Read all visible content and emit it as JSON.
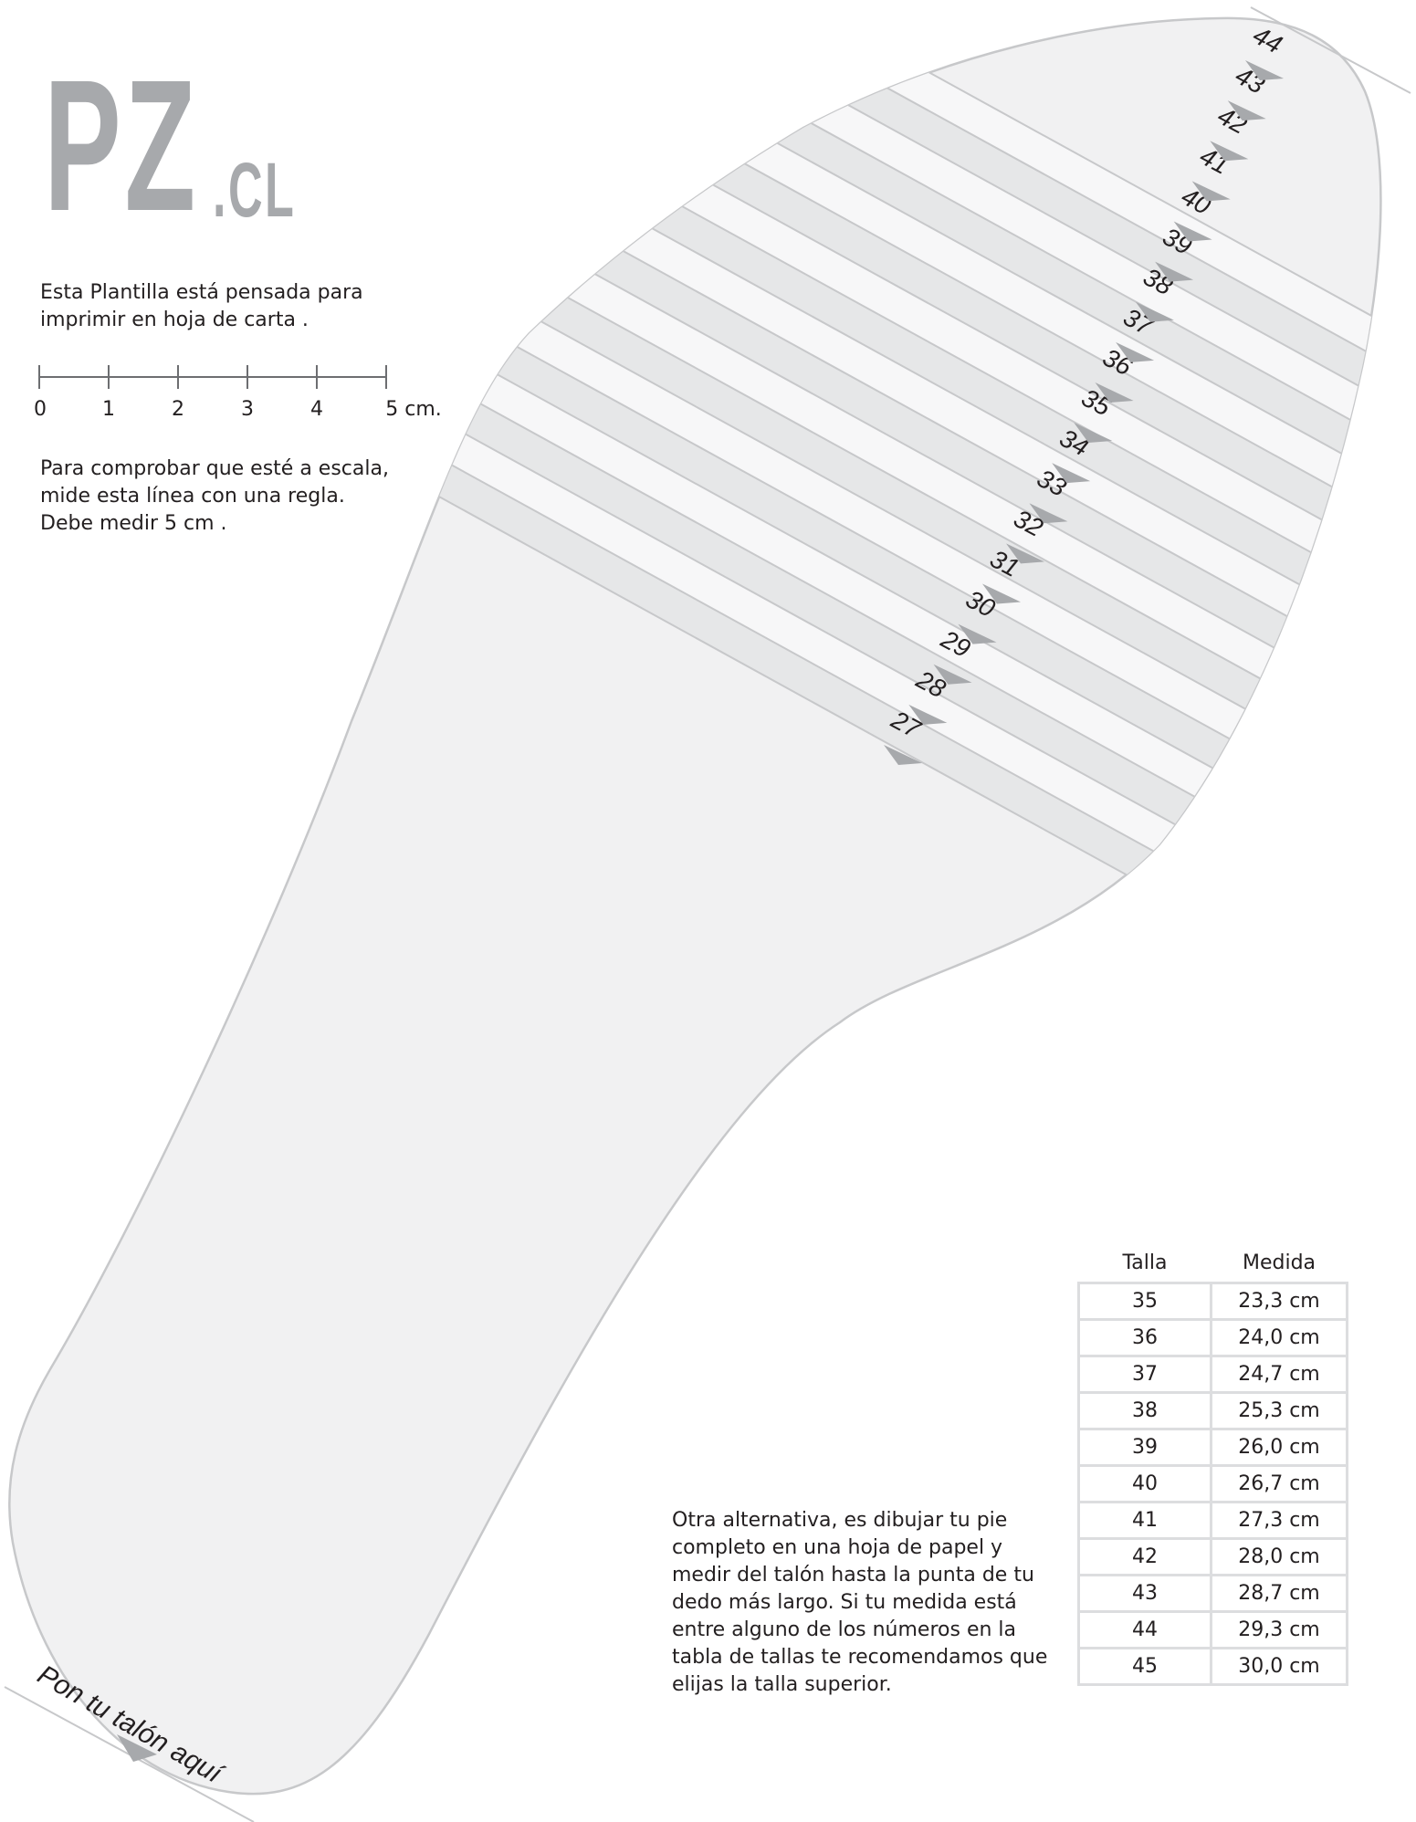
{
  "logo": {
    "main": "PZ",
    "suffix": ".CL"
  },
  "intro": {
    "lines": [
      "Esta Plantilla está pensada para",
      "imprimir en hoja de carta ."
    ]
  },
  "ruler": {
    "labels": [
      "0",
      "1",
      "2",
      "3",
      "4",
      "5 cm."
    ]
  },
  "check": {
    "lines": [
      "Para comprobar que esté a escala,",
      "mide esta línea con una regla.",
      "Debe medir 5 cm ."
    ]
  },
  "insole": {
    "sizes": [
      "27",
      "28",
      "29",
      "30",
      "31",
      "32",
      "33",
      "34",
      "35",
      "36",
      "37",
      "38",
      "39",
      "40",
      "41",
      "42",
      "43",
      "44"
    ],
    "heel_label": "Pon tu talón aquí"
  },
  "alternative": {
    "lines": [
      "Otra alternativa, es dibujar tu pie",
      "completo en una hoja de papel y",
      "medir del talón hasta la punta de tu",
      "dedo más largo. Si tu medida está",
      "entre alguno de los números en la",
      "tabla de tallas te recomendamos que",
      "elijas la talla superior."
    ]
  },
  "size_table": {
    "headers": [
      "Talla",
      "Medida"
    ],
    "rows": [
      [
        "35",
        "23,3 cm"
      ],
      [
        "36",
        "24,0 cm"
      ],
      [
        "37",
        "24,7 cm"
      ],
      [
        "38",
        "25,3 cm"
      ],
      [
        "39",
        "26,0 cm"
      ],
      [
        "40",
        "26,7 cm"
      ],
      [
        "41",
        "27,3 cm"
      ],
      [
        "42",
        "28,0 cm"
      ],
      [
        "43",
        "28,7 cm"
      ],
      [
        "44",
        "29,3 cm"
      ],
      [
        "45",
        "30,0 cm"
      ]
    ]
  },
  "colors": {
    "logo": "#a7a9ac",
    "insole_fill": "#f1f1f2",
    "band_dark": "#e6e7e8",
    "band_light": "#f7f7f8",
    "outline": "#c7c8ca",
    "arrow": "#a7a9ac"
  }
}
